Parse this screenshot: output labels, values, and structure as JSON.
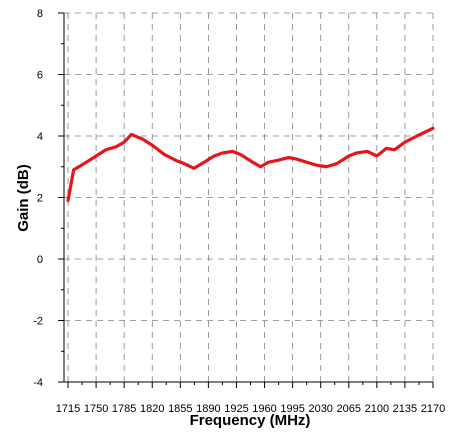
{
  "chart_data": {
    "type": "line",
    "title": "",
    "xlabel": "Frequency (MHz)",
    "ylabel": "Gain (dB)",
    "xlim": [
      1710,
      2170
    ],
    "ylim": [
      -4,
      8
    ],
    "xticks": [
      1715,
      1750,
      1785,
      1820,
      1855,
      1890,
      1925,
      1960,
      1995,
      2030,
      2065,
      2100,
      2135,
      2170
    ],
    "yticks": [
      -4,
      -2,
      0,
      2,
      4,
      6,
      8
    ],
    "grid": true,
    "series": [
      {
        "color": "#e8141b",
        "x": [
          1715,
          1722,
          1735,
          1750,
          1762,
          1775,
          1785,
          1794,
          1808,
          1820,
          1835,
          1850,
          1860,
          1872,
          1885,
          1897,
          1908,
          1920,
          1930,
          1945,
          1955,
          1965,
          1975,
          1990,
          2000,
          2012,
          2025,
          2037,
          2050,
          2065,
          2075,
          2088,
          2100,
          2112,
          2122,
          2135,
          2150,
          2170
        ],
        "y": [
          1.9,
          2.9,
          3.1,
          3.35,
          3.55,
          3.65,
          3.8,
          4.05,
          3.9,
          3.7,
          3.4,
          3.2,
          3.1,
          2.95,
          3.15,
          3.35,
          3.45,
          3.5,
          3.4,
          3.15,
          3.0,
          3.15,
          3.2,
          3.3,
          3.25,
          3.15,
          3.05,
          3.0,
          3.1,
          3.35,
          3.45,
          3.5,
          3.35,
          3.6,
          3.55,
          3.8,
          4.0,
          4.25
        ]
      }
    ]
  }
}
